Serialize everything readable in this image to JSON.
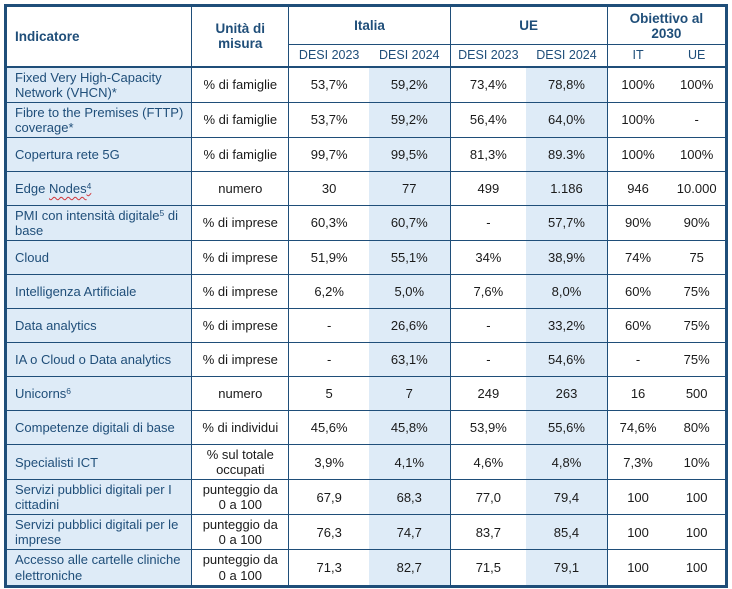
{
  "header": {
    "indicator_label": "Indicatore",
    "unit_label": "Unità di misura",
    "groups": [
      {
        "label": "Italia",
        "subcols": [
          "DESI 2023",
          "DESI 2024"
        ]
      },
      {
        "label": "UE",
        "subcols": [
          "DESI 2023",
          "DESI 2024"
        ]
      },
      {
        "label": "Obiettivo al 2030",
        "subcols": [
          "IT",
          "UE"
        ]
      }
    ]
  },
  "rows": [
    {
      "indicator": [
        {
          "t": "Fixed Very High-Capacity Network (VHCN)*"
        }
      ],
      "unit": "% di famiglie",
      "values": [
        "53,7%",
        "59,2%",
        "73,4%",
        "78,8%",
        "100%",
        "100%"
      ]
    },
    {
      "indicator": [
        {
          "t": "Fibre to the Premises (FTTP) coverage*"
        }
      ],
      "unit": "% di famiglie",
      "values": [
        "53,7%",
        "59,2%",
        "56,4%",
        "64,0%",
        "100%",
        "-"
      ]
    },
    {
      "indicator": [
        {
          "t": "Copertura rete 5G"
        }
      ],
      "unit": "% di famiglie",
      "values": [
        "99,7%",
        "99,5%",
        "81,3%",
        "89.3%",
        "100%",
        "100%"
      ]
    },
    {
      "indicator": [
        {
          "t": "Edge "
        },
        {
          "t": "Nodes",
          "wavy": true
        },
        {
          "t": "4",
          "sup": true,
          "wavy": true
        }
      ],
      "unit": "numero",
      "values": [
        "30",
        "77",
        "499",
        "1.186",
        "946",
        "10.000"
      ]
    },
    {
      "indicator": [
        {
          "t": "PMI con intensità digitale"
        },
        {
          "t": "5",
          "sup": true
        },
        {
          "t": " di base"
        }
      ],
      "unit": "% di imprese",
      "values": [
        "60,3%",
        "60,7%",
        "-",
        "57,7%",
        "90%",
        "90%"
      ]
    },
    {
      "indicator": [
        {
          "t": "Cloud"
        }
      ],
      "unit": "% di imprese",
      "values": [
        "51,9%",
        "55,1%",
        "34%",
        "38,9%",
        "74%",
        "75"
      ]
    },
    {
      "indicator": [
        {
          "t": "Intelligenza Artificiale"
        }
      ],
      "unit": "% di imprese",
      "values": [
        "6,2%",
        "5,0%",
        "7,6%",
        "8,0%",
        "60%",
        "75%"
      ]
    },
    {
      "indicator": [
        {
          "t": "Data analytics"
        }
      ],
      "unit": "% di imprese",
      "values": [
        "-",
        "26,6%",
        "-",
        "33,2%",
        "60%",
        "75%"
      ]
    },
    {
      "indicator": [
        {
          "t": "IA o Cloud o Data analytics"
        }
      ],
      "unit": "% di imprese",
      "values": [
        "-",
        "63,1%",
        "-",
        "54,6%",
        "-",
        "75%"
      ]
    },
    {
      "indicator": [
        {
          "t": "Unicorns"
        },
        {
          "t": "6",
          "sup": true
        }
      ],
      "unit": "numero",
      "values": [
        "5",
        "7",
        "249",
        "263",
        "16",
        "500"
      ]
    },
    {
      "indicator": [
        {
          "t": "Competenze digitali di base"
        }
      ],
      "unit": "% di individui",
      "values": [
        "45,6%",
        "45,8%",
        "53,9%",
        "55,6%",
        "74,6%",
        "80%"
      ]
    },
    {
      "indicator": [
        {
          "t": "Specialisti ICT"
        }
      ],
      "unit": "% sul totale occupati",
      "values": [
        "3,9%",
        "4,1%",
        "4,6%",
        "4,8%",
        "7,3%",
        "10%"
      ]
    },
    {
      "indicator": [
        {
          "t": "Servizi pubblici digitali per I cittadini"
        }
      ],
      "unit": "punteggio da 0 a 100",
      "values": [
        "67,9",
        "68,3",
        "77,0",
        "79,4",
        "100",
        "100"
      ]
    },
    {
      "indicator": [
        {
          "t": "Servizi pubblici digitali per le imprese"
        }
      ],
      "unit": "punteggio da 0 a 100",
      "values": [
        "76,3",
        "74,7",
        "83,7",
        "85,4",
        "100",
        "100"
      ]
    },
    {
      "indicator": [
        {
          "t": "Accesso alle cartelle cliniche elettroniche"
        }
      ],
      "unit": "punteggio da 0 a 100",
      "values": [
        "71,3",
        "82,7",
        "71,5",
        "79,1",
        "100",
        "100"
      ]
    }
  ],
  "colors": {
    "border": "#1F4E79",
    "header_text": "#1F4E79",
    "indicator_text": "#1F4E79",
    "value_text": "#1A1A1A",
    "highlight_fill": "#DEEBF7",
    "spellcheck_underline": "#D13438"
  }
}
